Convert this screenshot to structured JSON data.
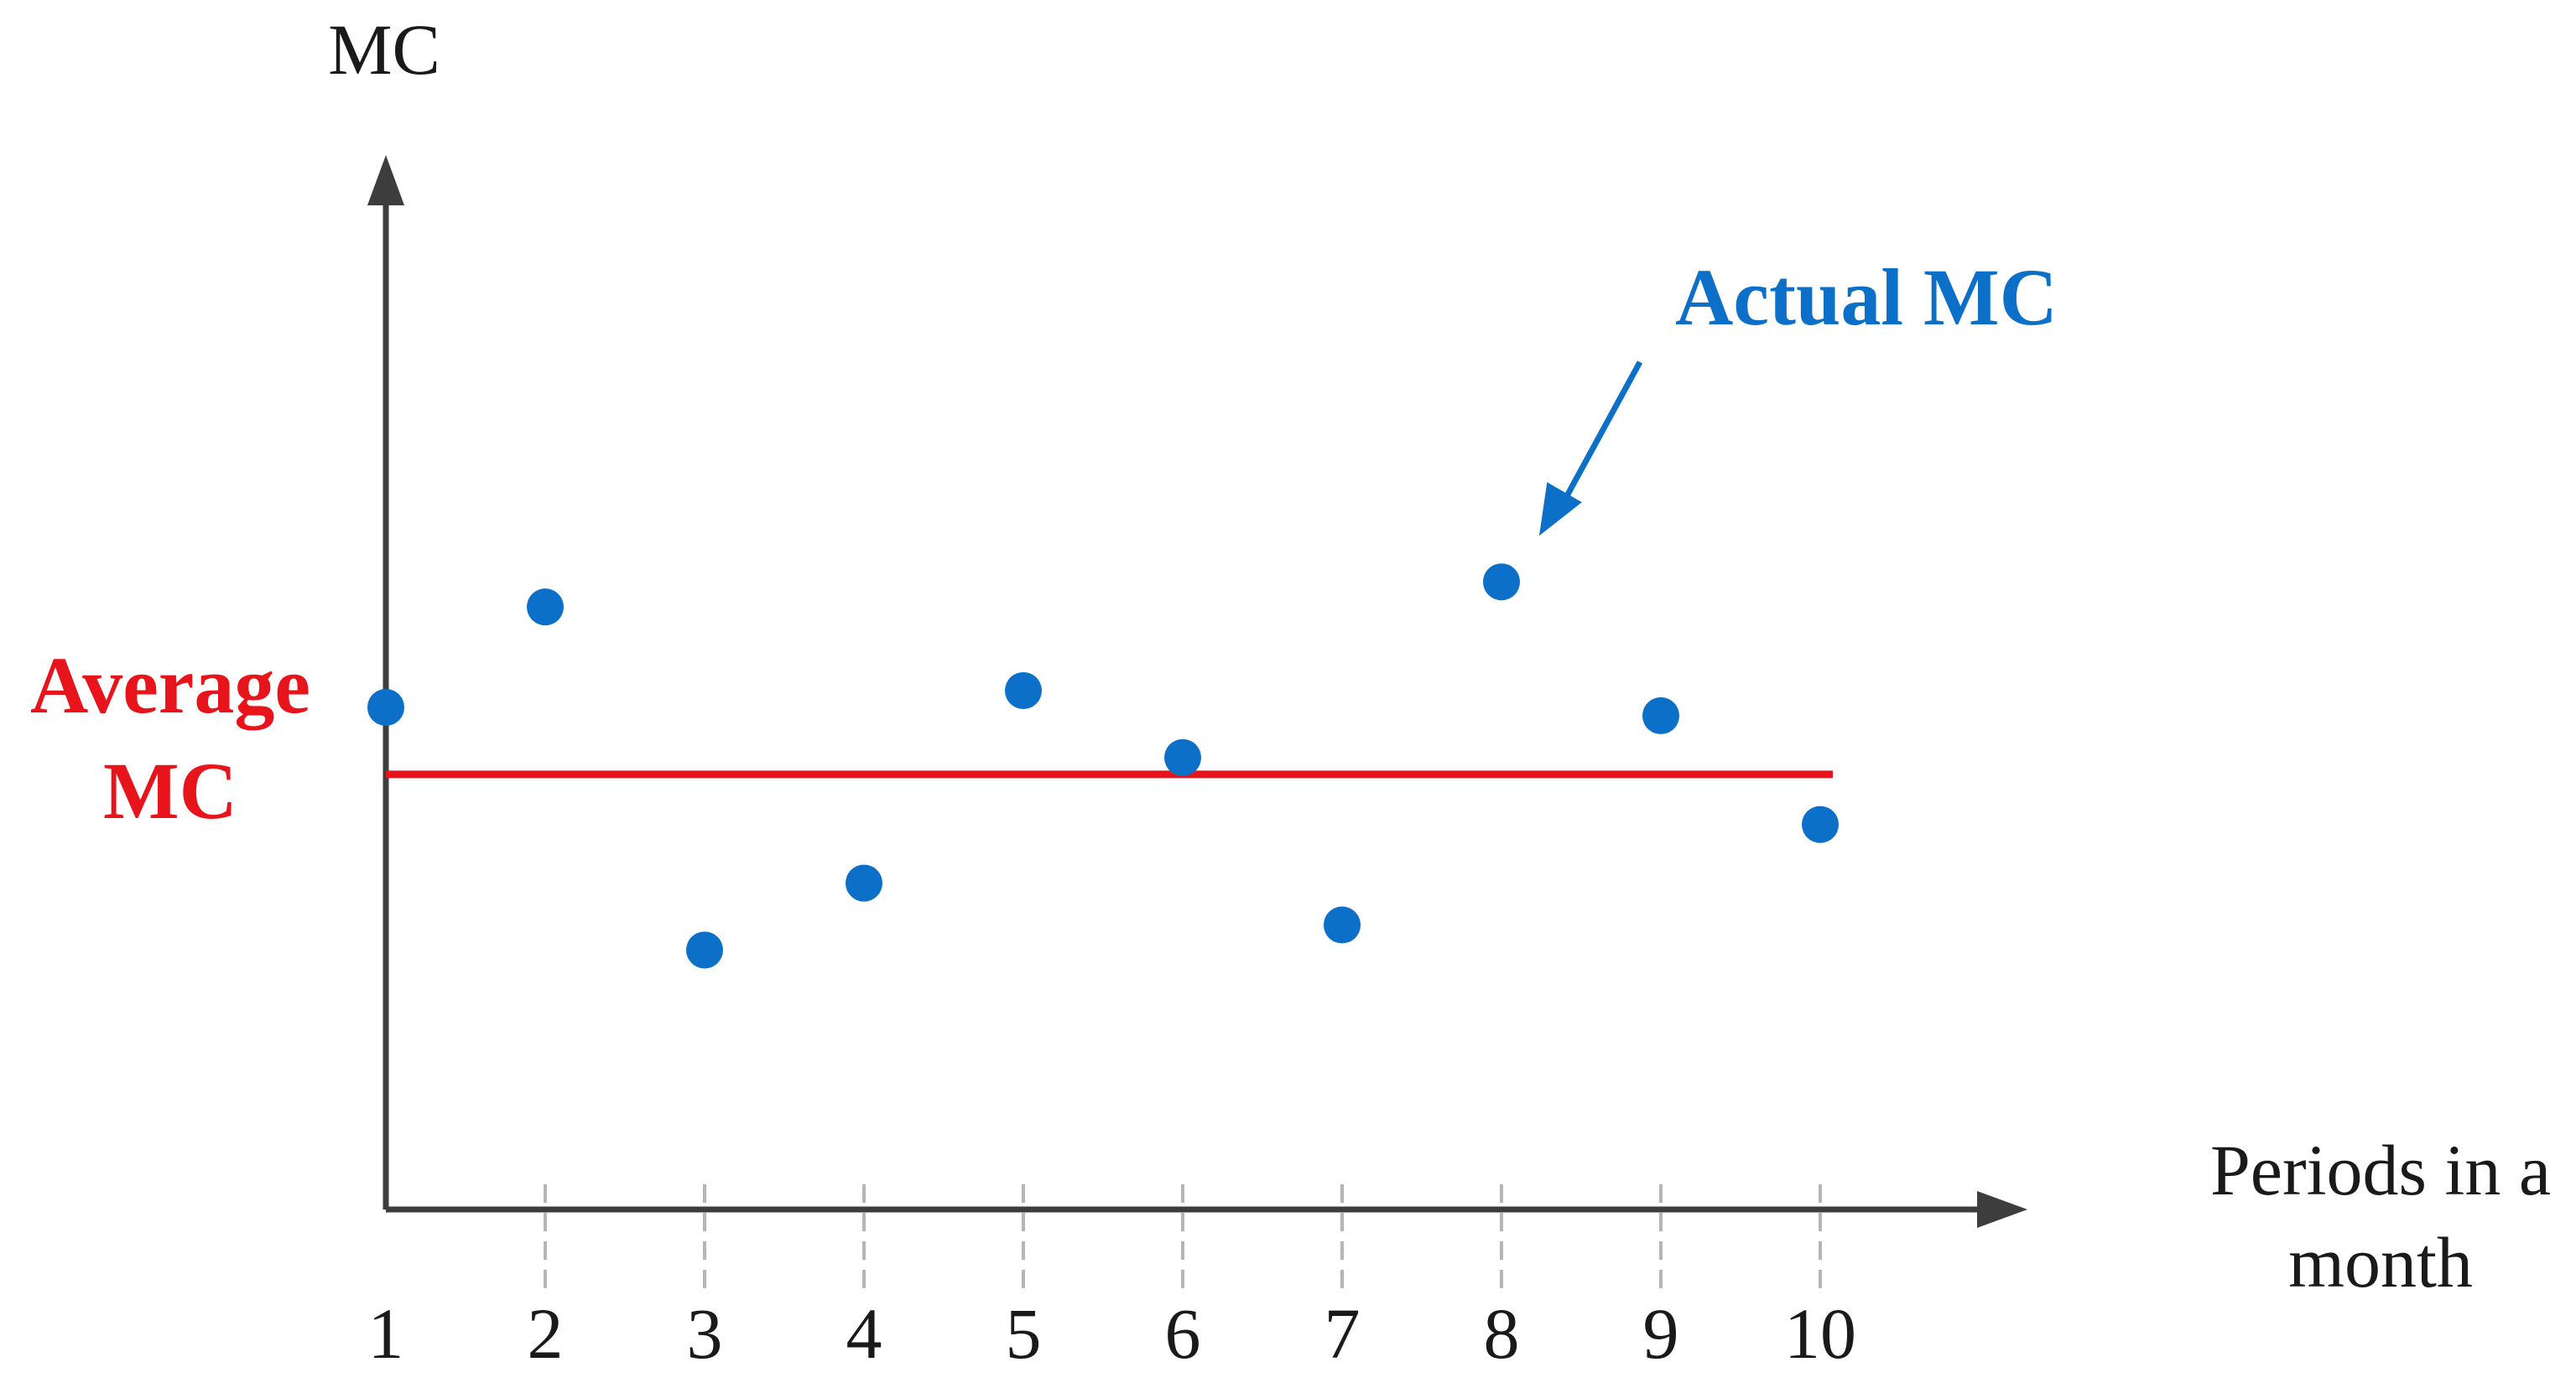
{
  "chart_data": {
    "type": "scatter",
    "title": "",
    "xlabel": "Periods in a month",
    "ylabel": "MC",
    "x_ticks": [
      "1",
      "2",
      "3",
      "4",
      "5",
      "6",
      "7",
      "8",
      "9",
      "10"
    ],
    "xlim": [
      1,
      11.3
    ],
    "ylim": [
      0,
      12.6
    ],
    "grid": false,
    "series": [
      {
        "name": "Actual MC",
        "color": "#0c6fc8",
        "points": [
          {
            "x": 1,
            "y": 6.0
          },
          {
            "x": 2,
            "y": 7.2
          },
          {
            "x": 3,
            "y": 3.1
          },
          {
            "x": 4,
            "y": 3.9
          },
          {
            "x": 5,
            "y": 6.2
          },
          {
            "x": 6,
            "y": 5.4
          },
          {
            "x": 7,
            "y": 3.4
          },
          {
            "x": 8,
            "y": 7.5
          },
          {
            "x": 9,
            "y": 5.9
          },
          {
            "x": 10,
            "y": 4.6
          }
        ]
      }
    ],
    "reference_lines": [
      {
        "name": "Average MC",
        "y": 5.2,
        "color": "#e8141b",
        "x_range": [
          1,
          10
        ]
      }
    ],
    "annotations": [
      {
        "text": "Actual MC",
        "color": "#0c6fc8",
        "points_to": {
          "x": 8,
          "y": 7.5
        }
      },
      {
        "text": "Average MC",
        "color": "#e8141b",
        "line1": "Average",
        "line2": "MC"
      }
    ],
    "axis_color": "#3d3d3d",
    "tick_color": "#b5b5b5"
  }
}
